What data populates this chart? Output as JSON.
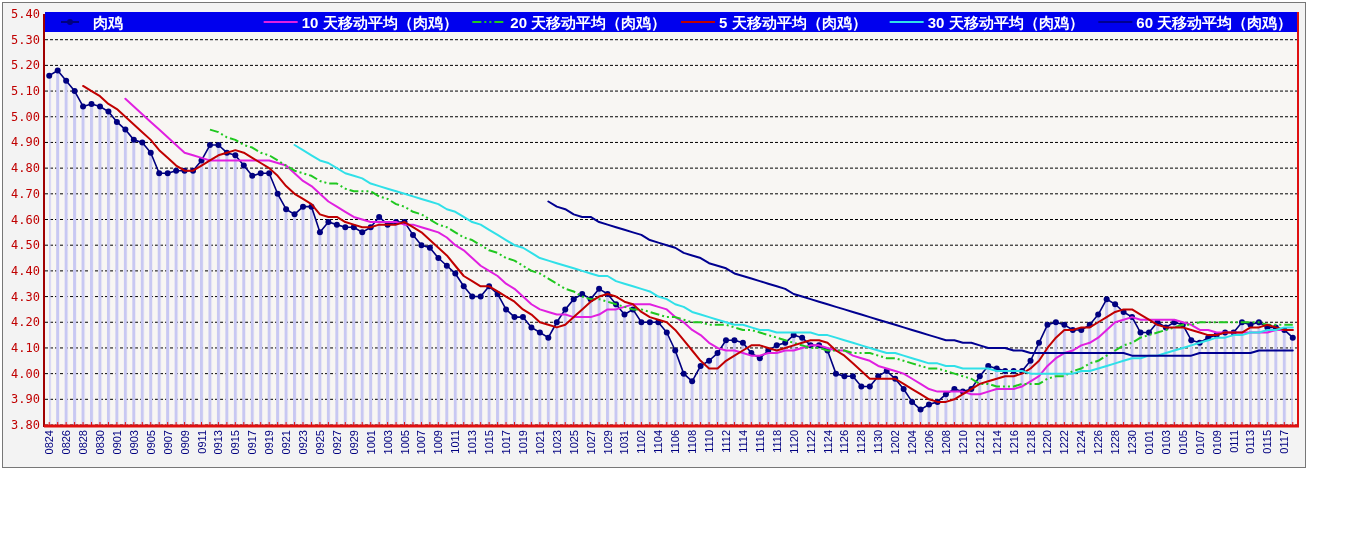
{
  "chart_data": {
    "type": "line",
    "categories": [
      "0824",
      null,
      "0826",
      null,
      "0828",
      null,
      "0830",
      null,
      "0901",
      null,
      "0903",
      null,
      "0905",
      null,
      "0907",
      null,
      "0909",
      null,
      "0911",
      null,
      "0913",
      null,
      "0915",
      null,
      "0917",
      null,
      "0919",
      null,
      "0921",
      null,
      "0923",
      null,
      "0925",
      null,
      "0927",
      null,
      "0929",
      null,
      "1001",
      null,
      "1003",
      null,
      "1005",
      null,
      "1007",
      null,
      "1009",
      null,
      "1011",
      null,
      "1013",
      null,
      "1015",
      null,
      "1017",
      null,
      "1019",
      null,
      "1021",
      null,
      "1023",
      null,
      "1025",
      null,
      "1027",
      null,
      "1029",
      null,
      "1031",
      null,
      "1102",
      null,
      "1104",
      null,
      "1106",
      null,
      "1108",
      null,
      "1110",
      null,
      "1112",
      null,
      "1114",
      null,
      "1116",
      null,
      "1118",
      null,
      "1120",
      null,
      "1122",
      null,
      "1124",
      null,
      "1126",
      null,
      "1128",
      null,
      "1130",
      null,
      "1202",
      null,
      "1204",
      null,
      "1206",
      null,
      "1208",
      null,
      "1210",
      null,
      "1212",
      null,
      "1214",
      null,
      "1216",
      null,
      "1218",
      null,
      "1220",
      null,
      "1222",
      null,
      "1224",
      null,
      "1226",
      null,
      "1228",
      null,
      "1230",
      null,
      "0101",
      null,
      "0103",
      null,
      "0105",
      null,
      "0107",
      null,
      "0109",
      null,
      "0111",
      null,
      "0113",
      null,
      "0115",
      null,
      "0117",
      null
    ],
    "ylim": [
      3.8,
      5.4
    ],
    "yticks": [
      {
        "value": 3.8,
        "label": "3.80"
      },
      {
        "value": 3.9,
        "label": "3.90"
      },
      {
        "value": 4.0,
        "label": "4.00"
      },
      {
        "value": 4.1,
        "label": "4.10"
      },
      {
        "value": 4.2,
        "label": "4.20"
      },
      {
        "value": 4.3,
        "label": "4.30"
      },
      {
        "value": 4.4,
        "label": "4.40"
      },
      {
        "value": 4.5,
        "label": "4.50"
      },
      {
        "value": 4.6,
        "label": "4.60"
      },
      {
        "value": 4.7,
        "label": "4.70"
      },
      {
        "value": 4.8,
        "label": "4.80"
      },
      {
        "value": 4.9,
        "label": "4.90"
      },
      {
        "value": 5.0,
        "label": "5.00"
      },
      {
        "value": 5.1,
        "label": "5.10"
      },
      {
        "value": 5.2,
        "label": "5.20"
      },
      {
        "value": 5.3,
        "label": "5.30"
      },
      {
        "value": 5.4,
        "label": "5.40"
      }
    ],
    "grid": "y",
    "legend": "top",
    "series": [
      {
        "name": "肉鸡",
        "type": "area",
        "color": "#000080",
        "marker": "circle",
        "values": [
          5.16,
          5.18,
          5.14,
          5.1,
          5.04,
          5.05,
          5.04,
          5.02,
          4.98,
          4.95,
          4.91,
          4.9,
          4.86,
          4.78,
          4.78,
          4.79,
          4.79,
          4.79,
          4.83,
          4.89,
          4.89,
          4.86,
          4.85,
          4.81,
          4.77,
          4.78,
          4.78,
          4.7,
          4.64,
          4.62,
          4.65,
          4.65,
          4.55,
          4.59,
          4.58,
          4.57,
          4.57,
          4.55,
          4.57,
          4.61,
          4.58,
          4.59,
          4.59,
          4.54,
          4.5,
          4.49,
          4.45,
          4.42,
          4.39,
          4.34,
          4.3,
          4.3,
          4.34,
          4.31,
          4.25,
          4.22,
          4.22,
          4.18,
          4.16,
          4.14,
          4.2,
          4.25,
          4.29,
          4.31,
          4.29,
          4.33,
          4.31,
          4.27,
          4.23,
          4.25,
          4.2,
          4.2,
          4.2,
          4.16,
          4.09,
          4.0,
          3.97,
          4.03,
          4.05,
          4.08,
          4.13,
          4.13,
          4.12,
          4.08,
          4.06,
          4.09,
          4.11,
          4.12,
          4.15,
          4.14,
          4.11,
          4.11,
          4.09,
          4.0,
          3.99,
          3.99,
          3.95,
          3.95,
          3.99,
          4.01,
          3.98,
          3.94,
          3.89,
          3.86,
          3.88,
          3.89,
          3.92,
          3.94,
          3.93,
          3.94,
          3.99,
          4.03,
          4.02,
          4.01,
          4.01,
          4.01,
          4.05,
          4.12,
          4.19,
          4.2,
          4.19,
          4.17,
          4.17,
          4.19,
          4.23,
          4.29,
          4.27,
          4.24,
          4.22,
          4.16,
          4.16,
          4.2,
          4.18,
          4.2,
          4.19,
          4.13,
          4.12,
          4.14,
          4.15,
          4.16,
          4.16,
          4.2,
          4.19,
          4.2,
          4.18,
          4.18,
          4.17,
          4.14
        ]
      },
      {
        "name": "10 天移动平均（肉鸡）",
        "color": "#e020e0",
        "values": [
          null,
          null,
          null,
          null,
          null,
          null,
          null,
          null,
          null,
          5.07,
          5.04,
          5.01,
          4.98,
          4.95,
          4.92,
          4.89,
          4.86,
          4.85,
          4.84,
          4.83,
          4.83,
          4.83,
          4.83,
          4.83,
          4.83,
          4.83,
          4.83,
          4.82,
          4.81,
          4.78,
          4.75,
          4.73,
          4.7,
          4.67,
          4.65,
          4.63,
          4.61,
          4.6,
          4.59,
          4.59,
          4.59,
          4.59,
          4.58,
          4.58,
          4.57,
          4.56,
          4.55,
          4.53,
          4.5,
          4.48,
          4.45,
          4.42,
          4.4,
          4.38,
          4.35,
          4.33,
          4.3,
          4.27,
          4.25,
          4.24,
          4.23,
          4.23,
          4.22,
          4.22,
          4.22,
          4.23,
          4.25,
          4.25,
          4.26,
          4.27,
          4.27,
          4.27,
          4.26,
          4.25,
          4.22,
          4.2,
          4.17,
          4.15,
          4.12,
          4.1,
          4.09,
          4.09,
          4.08,
          4.07,
          4.07,
          4.08,
          4.08,
          4.09,
          4.09,
          4.1,
          4.11,
          4.11,
          4.1,
          4.09,
          4.09,
          4.07,
          4.06,
          4.05,
          4.03,
          4.02,
          4.01,
          4.0,
          3.98,
          3.96,
          3.94,
          3.93,
          3.93,
          3.93,
          3.93,
          3.92,
          3.92,
          3.93,
          3.94,
          3.94,
          3.94,
          3.95,
          3.97,
          3.99,
          4.03,
          4.06,
          4.08,
          4.09,
          4.11,
          4.12,
          4.14,
          4.17,
          4.2,
          4.21,
          4.22,
          4.21,
          4.21,
          4.21,
          4.21,
          4.21,
          4.2,
          4.19,
          4.17,
          4.17,
          4.16,
          4.16,
          4.16,
          4.16,
          4.16,
          4.16,
          4.16,
          4.17,
          4.17,
          4.17
        ]
      },
      {
        "name": "20 天移动平均（肉鸡）",
        "color": "#20c820",
        "line_style": "dashed",
        "values": [
          null,
          null,
          null,
          null,
          null,
          null,
          null,
          null,
          null,
          null,
          null,
          null,
          null,
          null,
          null,
          null,
          null,
          null,
          null,
          4.95,
          4.94,
          4.92,
          4.91,
          4.89,
          4.88,
          4.86,
          4.85,
          4.83,
          4.81,
          4.79,
          4.78,
          4.77,
          4.75,
          4.74,
          4.74,
          4.72,
          4.71,
          4.71,
          4.71,
          4.69,
          4.68,
          4.66,
          4.65,
          4.63,
          4.62,
          4.6,
          4.58,
          4.57,
          4.55,
          4.53,
          4.52,
          4.5,
          4.48,
          4.47,
          4.45,
          4.44,
          4.42,
          4.4,
          4.39,
          4.37,
          4.35,
          4.33,
          4.32,
          4.3,
          4.29,
          4.29,
          4.28,
          4.27,
          4.26,
          4.25,
          4.25,
          4.24,
          4.23,
          4.22,
          4.22,
          4.21,
          4.2,
          4.2,
          4.19,
          4.19,
          4.19,
          4.18,
          4.17,
          4.17,
          4.16,
          4.15,
          4.14,
          4.13,
          4.12,
          4.11,
          4.1,
          4.1,
          4.09,
          4.09,
          4.09,
          4.08,
          4.08,
          4.08,
          4.07,
          4.06,
          4.06,
          4.05,
          4.04,
          4.03,
          4.02,
          4.02,
          4.01,
          4.0,
          3.99,
          3.98,
          3.96,
          3.96,
          3.95,
          3.95,
          3.95,
          3.96,
          3.96,
          3.96,
          3.98,
          3.99,
          3.99,
          4.01,
          4.02,
          4.04,
          4.05,
          4.07,
          4.09,
          4.11,
          4.12,
          4.14,
          4.15,
          4.16,
          4.17,
          4.18,
          4.19,
          4.19,
          4.2,
          4.2,
          4.2,
          4.2,
          4.2,
          4.2,
          4.2,
          4.2,
          4.19,
          4.19,
          4.19,
          4.19
        ]
      },
      {
        "name": "5 天移动平均（肉鸡）",
        "color": "#c00000",
        "values": [
          null,
          null,
          null,
          null,
          5.12,
          5.1,
          5.08,
          5.05,
          5.03,
          5.0,
          4.97,
          4.94,
          4.91,
          4.87,
          4.84,
          4.81,
          4.79,
          4.79,
          4.81,
          4.83,
          4.85,
          4.86,
          4.87,
          4.86,
          4.84,
          4.82,
          4.8,
          4.77,
          4.73,
          4.7,
          4.68,
          4.66,
          4.62,
          4.61,
          4.61,
          4.59,
          4.58,
          4.57,
          4.57,
          4.58,
          4.58,
          4.58,
          4.59,
          4.57,
          4.55,
          4.52,
          4.49,
          4.46,
          4.42,
          4.38,
          4.36,
          4.34,
          4.34,
          4.32,
          4.3,
          4.28,
          4.25,
          4.23,
          4.2,
          4.19,
          4.18,
          4.19,
          4.22,
          4.25,
          4.28,
          4.3,
          4.31,
          4.3,
          4.28,
          4.27,
          4.24,
          4.22,
          4.21,
          4.2,
          4.17,
          4.13,
          4.09,
          4.05,
          4.02,
          4.02,
          4.05,
          4.07,
          4.09,
          4.11,
          4.11,
          4.1,
          4.09,
          4.1,
          4.11,
          4.12,
          4.13,
          4.13,
          4.12,
          4.09,
          4.07,
          4.04,
          4.01,
          3.98,
          3.98,
          3.98,
          3.98,
          3.96,
          3.94,
          3.92,
          3.9,
          3.89,
          3.89,
          3.9,
          3.92,
          3.94,
          3.96,
          3.97,
          3.98,
          3.99,
          3.99,
          4.0,
          4.02,
          4.05,
          4.1,
          4.14,
          4.17,
          4.17,
          4.18,
          4.18,
          4.2,
          4.22,
          4.24,
          4.25,
          4.25,
          4.23,
          4.21,
          4.19,
          4.18,
          4.18,
          4.18,
          4.17,
          4.16,
          4.15,
          4.15,
          4.16,
          4.16,
          4.16,
          4.18,
          4.18,
          4.19,
          4.18,
          4.17,
          4.17
        ]
      },
      {
        "name": "30 天移动平均（肉鸡）",
        "color": "#30e0e8",
        "values": [
          null,
          null,
          null,
          null,
          null,
          null,
          null,
          null,
          null,
          null,
          null,
          null,
          null,
          null,
          null,
          null,
          null,
          null,
          null,
          null,
          null,
          null,
          null,
          null,
          null,
          null,
          null,
          null,
          null,
          4.89,
          4.87,
          4.85,
          4.83,
          4.82,
          4.8,
          4.78,
          4.77,
          4.76,
          4.74,
          4.73,
          4.72,
          4.71,
          4.7,
          4.69,
          4.68,
          4.67,
          4.66,
          4.64,
          4.63,
          4.61,
          4.59,
          4.58,
          4.56,
          4.54,
          4.52,
          4.5,
          4.49,
          4.47,
          4.45,
          4.44,
          4.43,
          4.42,
          4.41,
          4.4,
          4.39,
          4.38,
          4.38,
          4.36,
          4.35,
          4.34,
          4.33,
          4.32,
          4.3,
          4.29,
          4.27,
          4.26,
          4.24,
          4.23,
          4.22,
          4.21,
          4.2,
          4.19,
          4.19,
          4.18,
          4.17,
          4.17,
          4.16,
          4.16,
          4.16,
          4.16,
          4.16,
          4.15,
          4.15,
          4.14,
          4.13,
          4.12,
          4.11,
          4.1,
          4.09,
          4.08,
          4.08,
          4.07,
          4.06,
          4.05,
          4.04,
          4.04,
          4.03,
          4.03,
          4.02,
          4.02,
          4.02,
          4.02,
          4.01,
          4.01,
          4.01,
          4.01,
          4.0,
          4.0,
          4.0,
          4.0,
          4.0,
          4.0,
          4.01,
          4.01,
          4.02,
          4.03,
          4.04,
          4.05,
          4.06,
          4.06,
          4.07,
          4.07,
          4.08,
          4.09,
          4.1,
          4.11,
          4.12,
          4.13,
          4.14,
          4.14,
          4.15,
          4.15,
          4.16,
          4.16,
          4.17,
          4.17,
          4.18,
          4.18
        ]
      },
      {
        "name": "60 天移动平均（肉鸡）",
        "color": "#000090",
        "values": [
          null,
          null,
          null,
          null,
          null,
          null,
          null,
          null,
          null,
          null,
          null,
          null,
          null,
          null,
          null,
          null,
          null,
          null,
          null,
          null,
          null,
          null,
          null,
          null,
          null,
          null,
          null,
          null,
          null,
          null,
          null,
          null,
          null,
          null,
          null,
          null,
          null,
          null,
          null,
          null,
          null,
          null,
          null,
          null,
          null,
          null,
          null,
          null,
          null,
          null,
          null,
          null,
          null,
          null,
          null,
          null,
          null,
          null,
          null,
          4.67,
          4.65,
          4.64,
          4.62,
          4.61,
          4.61,
          4.59,
          4.58,
          4.57,
          4.56,
          4.55,
          4.54,
          4.52,
          4.51,
          4.5,
          4.49,
          4.47,
          4.46,
          4.45,
          4.43,
          4.42,
          4.41,
          4.39,
          4.38,
          4.37,
          4.36,
          4.35,
          4.34,
          4.33,
          4.31,
          4.3,
          4.29,
          4.28,
          4.27,
          4.26,
          4.25,
          4.24,
          4.23,
          4.22,
          4.21,
          4.2,
          4.19,
          4.18,
          4.17,
          4.16,
          4.15,
          4.14,
          4.13,
          4.13,
          4.12,
          4.12,
          4.11,
          4.1,
          4.1,
          4.1,
          4.09,
          4.09,
          4.08,
          4.08,
          4.08,
          4.08,
          4.08,
          4.08,
          4.08,
          4.08,
          4.08,
          4.08,
          4.08,
          4.08,
          4.07,
          4.07,
          4.07,
          4.07,
          4.07,
          4.07,
          4.07,
          4.07,
          4.08,
          4.08,
          4.08,
          4.08,
          4.08,
          4.08,
          4.08,
          4.09,
          4.09,
          4.09,
          4.09,
          4.09
        ]
      }
    ]
  }
}
